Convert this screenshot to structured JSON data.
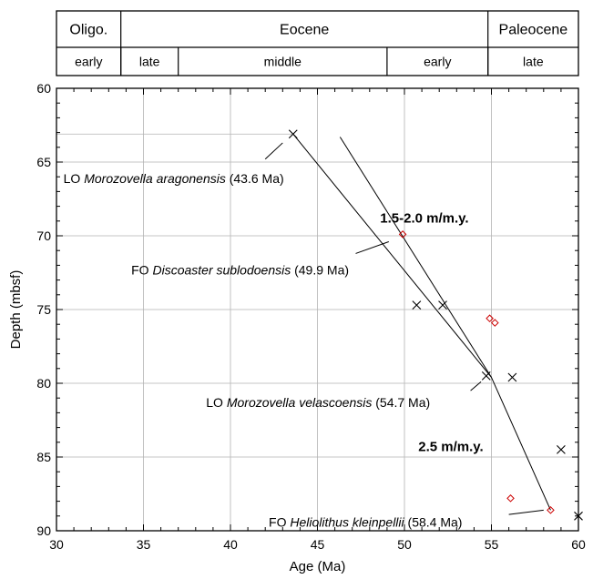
{
  "strat": {
    "epochs": [
      {
        "label": "Oligo.",
        "from": 30,
        "to": 33.7
      },
      {
        "label": "Eocene",
        "from": 33.7,
        "to": 54.8
      },
      {
        "label": "Paleocene",
        "from": 54.8,
        "to": 60
      }
    ],
    "subepochs": [
      {
        "label": "early",
        "from": 30,
        "to": 33.7
      },
      {
        "label": "late",
        "from": 33.7,
        "to": 37
      },
      {
        "label": "middle",
        "from": 37,
        "to": 49
      },
      {
        "label": "early",
        "from": 49,
        "to": 54.8
      },
      {
        "label": "late",
        "from": 54.8,
        "to": 60
      }
    ]
  },
  "chart_data": {
    "type": "scatter",
    "xlabel": "Age (Ma)",
    "ylabel": "Depth (mbsf)",
    "xlim": [
      30,
      60
    ],
    "ylim": [
      60,
      90
    ],
    "y_inverted": true,
    "xticks": [
      30,
      35,
      40,
      45,
      50,
      55,
      60
    ],
    "yticks": [
      60,
      65,
      70,
      75,
      80,
      85,
      90
    ],
    "grid": true,
    "series": [
      {
        "marker": "x",
        "color": "#000000",
        "points": [
          [
            43.6,
            63.1
          ],
          [
            50.7,
            74.7
          ],
          [
            52.2,
            74.7
          ],
          [
            54.7,
            79.5
          ],
          [
            56.2,
            79.6
          ],
          [
            59.0,
            84.5
          ],
          [
            60.0,
            89.0
          ]
        ]
      },
      {
        "marker": "diamond",
        "color": "#cc0000",
        "points": [
          [
            49.9,
            69.9
          ],
          [
            54.9,
            75.6
          ],
          [
            55.2,
            75.9
          ],
          [
            56.1,
            87.8
          ],
          [
            58.4,
            88.6
          ]
        ]
      }
    ],
    "lines": [
      [
        [
          43.6,
          63.1
        ],
        [
          55.0,
          79.6
        ]
      ],
      [
        [
          46.3,
          63.3
        ],
        [
          55.0,
          79.6
        ]
      ],
      [
        [
          55.0,
          79.6
        ],
        [
          58.4,
          88.6
        ]
      ]
    ],
    "reference_lines": [
      [
        [
          30,
          63.1
        ],
        [
          43.6,
          63.1
        ]
      ]
    ],
    "rate_labels": [
      {
        "text": "1.5-2.0 m/m.y.",
        "x": 48.6,
        "y": 68.8
      },
      {
        "text": "2.5 m/m.y.",
        "x": 50.8,
        "y": 84.3
      }
    ],
    "annotations": [
      {
        "prefix": "LO ",
        "taxon": "Morozovella aragonensis",
        "age": " (43.6 Ma)",
        "x": 30.4,
        "y": 66.1,
        "leader": [
          [
            42.0,
            64.8
          ],
          [
            43.0,
            63.7
          ]
        ]
      },
      {
        "prefix": "FO ",
        "taxon": "Discoaster sublodoensis",
        "age": " (49.9 Ma)",
        "x": 34.3,
        "y": 72.3,
        "leader": [
          [
            47.2,
            71.2
          ],
          [
            49.1,
            70.4
          ]
        ]
      },
      {
        "prefix": "LO ",
        "taxon": "Morozovella velascoensis",
        "age": " (54.7 Ma)",
        "x": 38.6,
        "y": 81.3,
        "leader": [
          [
            53.8,
            80.5
          ],
          [
            54.4,
            79.9
          ]
        ]
      },
      {
        "prefix": "FO ",
        "taxon": "Heliolithus kleinpellii",
        "age": " (58.4 Ma)",
        "x": 42.2,
        "y": 89.4,
        "leader": [
          [
            56.0,
            88.9
          ],
          [
            58.0,
            88.6
          ]
        ]
      }
    ]
  }
}
